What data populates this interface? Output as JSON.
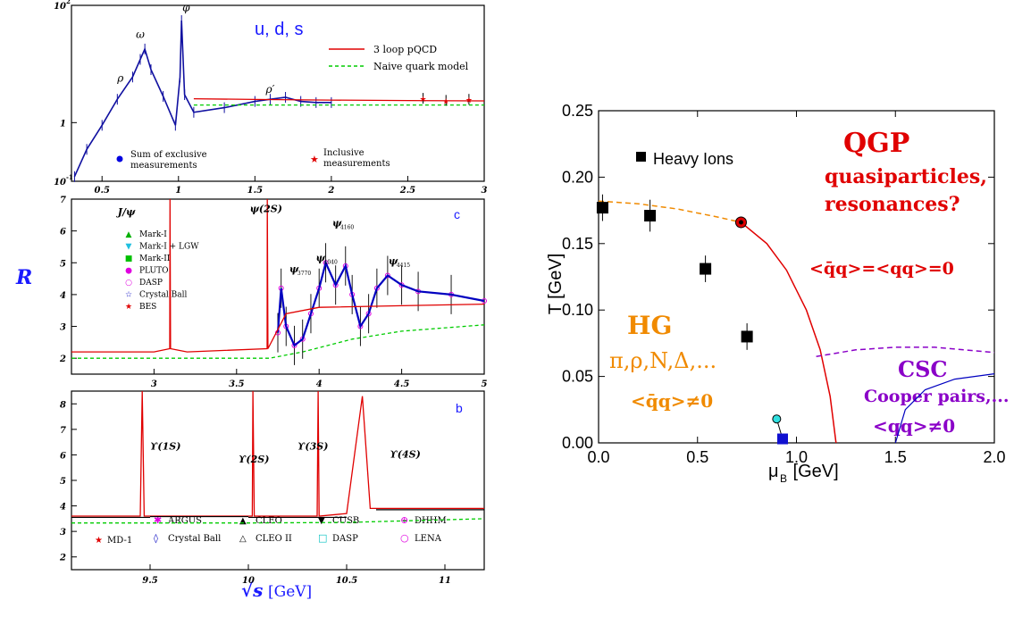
{
  "common": {
    "ylabel": "R",
    "xlabel_symbol": "√s",
    "xlabel_unit": "[GeV]"
  },
  "chart_data": [
    {
      "id": "uds",
      "type": "line",
      "tag": "u, d, s",
      "xlim": [
        0.3,
        3.0
      ],
      "ylim": [
        0.1,
        100
      ],
      "yscale": "log",
      "x_ticks": [
        "0.5",
        "1",
        "1.5",
        "2",
        "2.5",
        "3"
      ],
      "y_ticks": [
        "10",
        "1",
        "10"
      ],
      "y_tick_exponents": [
        "-1",
        "",
        "2"
      ],
      "peak_labels": [
        "ρ",
        "ω",
        "φ",
        "ρ′"
      ],
      "legend": [
        "3 loop pQCD",
        "Naive quark model"
      ],
      "bottom_legend": [
        "Sum of exclusive measurements",
        "Inclusive measurements"
      ],
      "series": [
        {
          "name": "3 loop pQCD",
          "x": [
            1.1,
            1.5,
            2.0,
            2.5,
            3.0
          ],
          "y": [
            2.55,
            2.48,
            2.42,
            2.38,
            2.35
          ]
        },
        {
          "name": "Naive quark model",
          "x": [
            1.1,
            3.0
          ],
          "y": [
            2.0,
            2.0
          ]
        },
        {
          "name": "Sum of exclusive measurements",
          "x": [
            0.32,
            0.4,
            0.5,
            0.6,
            0.7,
            0.75,
            0.78,
            0.82,
            0.9,
            0.98,
            1.01,
            1.02,
            1.04,
            1.1,
            1.3,
            1.5,
            1.6,
            1.7,
            1.8,
            1.9,
            2.0
          ],
          "y": [
            0.12,
            0.35,
            0.9,
            2.5,
            6.0,
            12.0,
            18.0,
            8.0,
            2.8,
            0.9,
            6.0,
            55.0,
            3.0,
            1.5,
            1.8,
            2.3,
            2.5,
            2.7,
            2.3,
            2.2,
            2.2
          ]
        },
        {
          "name": "Inclusive measurements",
          "x": [
            2.6,
            2.75,
            2.9
          ],
          "y": [
            2.6,
            2.4,
            2.5
          ]
        }
      ]
    },
    {
      "id": "charm",
      "type": "line",
      "tag": "c",
      "xlim": [
        2.5,
        5.0
      ],
      "ylim": [
        1.5,
        7.0
      ],
      "x_ticks": [
        "3",
        "3.5",
        "4",
        "4.5",
        "5"
      ],
      "y_ticks": [
        "2",
        "3",
        "4",
        "5",
        "6",
        "7"
      ],
      "peak_labels": [
        "J/ψ",
        "ψ(2S)",
        "ψ",
        "ψ",
        "ψ",
        "ψ"
      ],
      "peak_subscripts": [
        "",
        "",
        "3770",
        "4040",
        "4160",
        "4415"
      ],
      "legend": [
        "Mark-I",
        "Mark-I + LGW",
        "Mark-II",
        "PLUTO",
        "DASP",
        "Crystal Ball",
        "BES"
      ],
      "legend_colors": [
        "#00b000",
        "#20c0e0",
        "#00c000",
        "#e000e0",
        "#e000e0",
        "#0000c0",
        "#e00000"
      ],
      "series": [
        {
          "name": "pQCD",
          "x": [
            2.5,
            3.0,
            3.095,
            3.097,
            3.1,
            3.2,
            3.685,
            3.686,
            3.69,
            3.8,
            4.0,
            4.5,
            5.0
          ],
          "y": [
            2.2,
            2.2,
            2.3,
            7.0,
            2.3,
            2.2,
            2.3,
            7.0,
            2.3,
            3.4,
            3.6,
            3.65,
            3.7
          ]
        },
        {
          "name": "Naive quark model",
          "x": [
            2.5,
            3.0,
            3.7,
            3.9,
            4.2,
            4.5,
            5.0
          ],
          "y": [
            2.0,
            2.0,
            2.0,
            2.2,
            2.6,
            2.85,
            3.05
          ]
        },
        {
          "name": "data",
          "x": [
            3.75,
            3.77,
            3.8,
            3.85,
            3.9,
            3.95,
            4.0,
            4.04,
            4.1,
            4.16,
            4.2,
            4.25,
            4.3,
            4.35,
            4.415,
            4.5,
            4.6,
            4.8,
            5.0
          ],
          "y": [
            2.8,
            4.2,
            3.0,
            2.4,
            2.6,
            3.4,
            4.2,
            5.0,
            4.3,
            4.9,
            4.0,
            3.0,
            3.4,
            4.2,
            4.6,
            4.3,
            4.1,
            4.0,
            3.8
          ]
        }
      ]
    },
    {
      "id": "bottom",
      "type": "line",
      "tag": "b",
      "xlim": [
        9.1,
        11.2
      ],
      "ylim": [
        1.5,
        8.5
      ],
      "x_ticks": [
        "9.5",
        "10",
        "10.5",
        "11"
      ],
      "y_ticks": [
        "2",
        "3",
        "4",
        "5",
        "6",
        "7",
        "8"
      ],
      "peak_labels": [
        "ϒ(1S)",
        "ϒ(2S)",
        "ϒ(3S)",
        "ϒ(4S)"
      ],
      "legend": [
        "MD-1",
        "ARGUS",
        "Crystal Ball",
        "CLEO",
        "CLEO II",
        "CUSB",
        "DASP",
        "DHHM",
        "LENA"
      ],
      "series": [
        {
          "name": "pQCD",
          "x": [
            9.1,
            9.45,
            9.46,
            9.47,
            10.02,
            10.023,
            10.03,
            10.35,
            10.355,
            10.36,
            10.5,
            10.58,
            10.62,
            11.2
          ],
          "y": [
            3.6,
            3.6,
            8.5,
            3.6,
            3.6,
            8.5,
            3.6,
            3.6,
            8.5,
            3.6,
            3.7,
            8.3,
            3.9,
            3.9
          ]
        },
        {
          "name": "Naive quark model",
          "x": [
            9.1,
            10.0,
            10.5,
            11.2
          ],
          "y": [
            3.33,
            3.33,
            3.35,
            3.5
          ]
        }
      ]
    },
    {
      "id": "phase",
      "type": "scatter",
      "xlabel": "μ",
      "xlabel_sub": "B",
      "xlabel_unit": " [GeV]",
      "ylabel": "T [GeV]",
      "xlim": [
        0.0,
        2.0
      ],
      "ylim": [
        0.0,
        0.25
      ],
      "x_ticks": [
        "0.0",
        "0.5",
        "1.0",
        "1.5",
        "2.0"
      ],
      "y_ticks": [
        "0.00",
        "0.05",
        "0.10",
        "0.15",
        "0.20",
        "0.25"
      ],
      "legend": [
        "Heavy Ions"
      ],
      "region_labels": {
        "qgp": "QGP",
        "qgp_sub1": "quasiparticles,",
        "qgp_sub2": "resonances?",
        "qgp_cond": "<q̄q>=<qq>=0",
        "hg": "HG",
        "hg_sub": "π,ρ,N,Δ,...",
        "hg_cond": "<q̄q>≠0",
        "csc": "CSC",
        "csc_sub": "Cooper pairs,...",
        "csc_cond": "<qq>≠0"
      },
      "colors": {
        "qgp": "#e00000",
        "hg": "#f08a00",
        "csc": "#8a00c8",
        "csc_line": "#0000c0"
      },
      "heavy_ions": {
        "x": [
          0.02,
          0.26,
          0.54,
          0.75
        ],
        "y": [
          0.177,
          0.171,
          0.131,
          0.08
        ],
        "err": [
          0.01,
          0.012,
          0.01,
          0.01
        ]
      },
      "critical_point": {
        "x": 0.72,
        "y": 0.166
      },
      "nuclear_matter": {
        "x": 0.93,
        "y": 0.003
      },
      "cyan_point": {
        "x": 0.9,
        "y": 0.018
      },
      "crossover_line": {
        "x": [
          0.0,
          0.2,
          0.4,
          0.6,
          0.72
        ],
        "y": [
          0.182,
          0.18,
          0.176,
          0.17,
          0.166
        ]
      },
      "transition_line": {
        "x": [
          0.72,
          0.85,
          0.95,
          1.05,
          1.12,
          1.17,
          1.2
        ],
        "y": [
          0.166,
          0.15,
          0.13,
          0.1,
          0.07,
          0.035,
          0.0
        ]
      },
      "csc_dashed": {
        "x": [
          1.1,
          1.3,
          1.5,
          1.7,
          2.0
        ],
        "y": [
          0.065,
          0.07,
          0.072,
          0.072,
          0.068
        ]
      },
      "csc_blue": {
        "x": [
          1.5,
          1.55,
          1.65,
          1.8,
          2.0
        ],
        "y": [
          0.0,
          0.025,
          0.04,
          0.048,
          0.052
        ]
      }
    }
  ]
}
